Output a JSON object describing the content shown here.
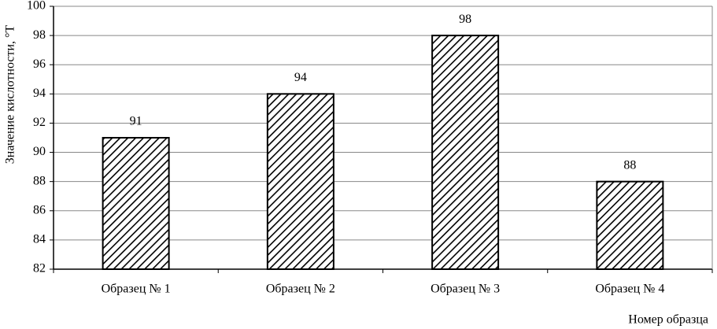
{
  "chart_data": {
    "type": "bar",
    "ylabel": "Значение кислотности, °T",
    "xlabel": "Номер образца",
    "categories": [
      "Образец № 1",
      "Образец № 2",
      "Образец № 3",
      "Образец № 4"
    ],
    "values": [
      91,
      94,
      98,
      88
    ],
    "color": "#000000",
    "ylim": [
      82,
      100
    ],
    "yticks": [
      82,
      84,
      86,
      88,
      90,
      92,
      94,
      96,
      98,
      100
    ],
    "grid": true
  }
}
